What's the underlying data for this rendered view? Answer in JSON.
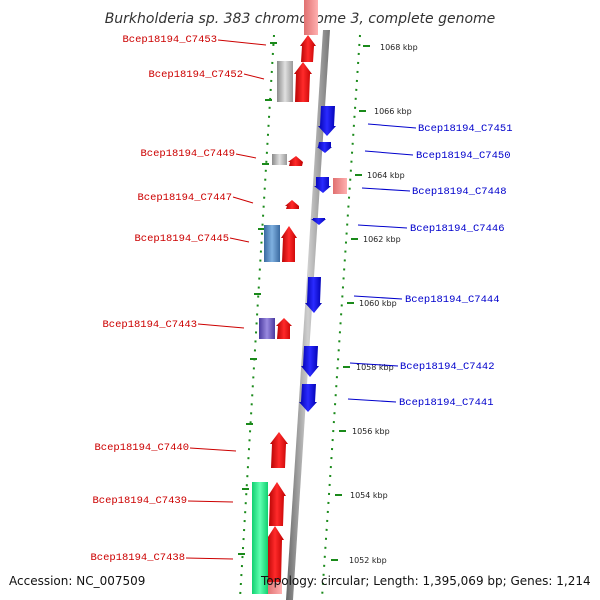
{
  "title": "Burkholderia sp. 383 chromosome 3, complete genome",
  "footer": {
    "accession": "Accession: NC_007509",
    "topology": "Topology: circular; Length: 1,395,069 bp; Genes: 1,214"
  },
  "colors": {
    "forward": "#ff0000",
    "reverse": "#0000ff",
    "link": "#cc0000",
    "link_rev": "#0000cc",
    "dots": "#1a8a1a"
  },
  "scale_labels": [
    "1068 kbp",
    "1066 kbp",
    "1064 kbp",
    "1062 kbp",
    "1060 kbp",
    "1058 kbp",
    "1056 kbp",
    "1054 kbp",
    "1052 kbp"
  ],
  "left_labels": [
    "Bcep18194_C7453",
    "Bcep18194_C7452",
    "Bcep18194_C7449",
    "Bcep18194_C7447",
    "Bcep18194_C7445",
    "Bcep18194_C7443",
    "Bcep18194_C7440",
    "Bcep18194_C7439",
    "Bcep18194_C7438"
  ],
  "right_labels": [
    "Bcep18194_C7451",
    "Bcep18194_C7450",
    "Bcep18194_C7448",
    "Bcep18194_C7446",
    "Bcep18194_C7444",
    "Bcep18194_C7442",
    "Bcep18194_C7441"
  ]
}
